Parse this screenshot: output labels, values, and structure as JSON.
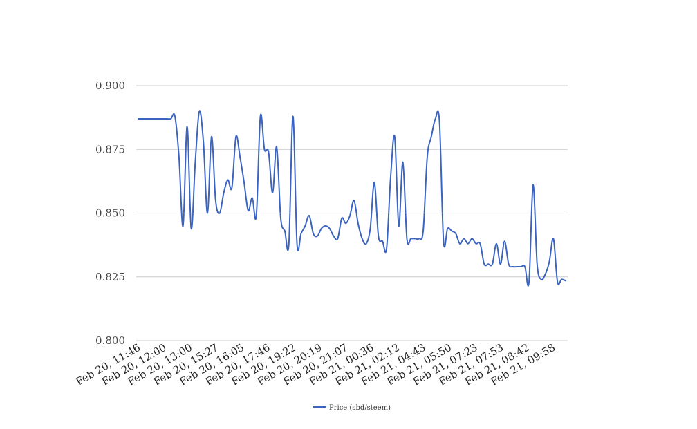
{
  "chart_data": {
    "type": "line",
    "title": "",
    "xlabel": "",
    "ylabel": "",
    "ylim": [
      0.8,
      0.9
    ],
    "yticks": [
      "0.800",
      "0.825",
      "0.850",
      "0.875",
      "0.900"
    ],
    "grid": true,
    "legend_position": "bottom-center",
    "xtick_labels": [
      "Feb 20, 11:46",
      "Feb 20, 12:00",
      "Feb 20, 13:00",
      "Feb 20, 15:27",
      "Feb 20, 16:05",
      "Feb 20, 17:46",
      "Feb 20, 19:22",
      "Feb 20, 20:19",
      "Feb 20, 21:07",
      "Feb 21, 00:36",
      "Feb 21, 02:12",
      "Feb 21, 04:43",
      "Feb 21, 05:50",
      "Feb 21, 07:23",
      "Feb 21, 07:53",
      "Feb 21, 08:42",
      "Feb 21, 09:58"
    ],
    "series": [
      {
        "name": "Price (sbd/steem)",
        "color": "#3b64c0",
        "values": [
          0.887,
          0.887,
          0.887,
          0.887,
          0.887,
          0.887,
          0.887,
          0.887,
          0.887,
          0.888,
          0.872,
          0.845,
          0.884,
          0.844,
          0.87,
          0.89,
          0.878,
          0.85,
          0.88,
          0.855,
          0.85,
          0.858,
          0.863,
          0.86,
          0.88,
          0.872,
          0.862,
          0.851,
          0.856,
          0.849,
          0.888,
          0.875,
          0.874,
          0.858,
          0.876,
          0.848,
          0.843,
          0.838,
          0.888,
          0.838,
          0.842,
          0.845,
          0.849,
          0.842,
          0.841,
          0.844,
          0.845,
          0.844,
          0.841,
          0.84,
          0.848,
          0.846,
          0.849,
          0.855,
          0.846,
          0.84,
          0.838,
          0.844,
          0.862,
          0.841,
          0.839,
          0.836,
          0.864,
          0.88,
          0.845,
          0.87,
          0.84,
          0.84,
          0.84,
          0.84,
          0.843,
          0.872,
          0.88,
          0.887,
          0.886,
          0.839,
          0.844,
          0.843,
          0.842,
          0.838,
          0.84,
          0.838,
          0.84,
          0.838,
          0.838,
          0.83,
          0.83,
          0.83,
          0.838,
          0.83,
          0.839,
          0.83,
          0.829,
          0.829,
          0.829,
          0.829,
          0.823,
          0.861,
          0.83,
          0.824,
          0.826,
          0.831,
          0.84,
          0.823,
          0.824,
          0.8235
        ]
      }
    ]
  }
}
